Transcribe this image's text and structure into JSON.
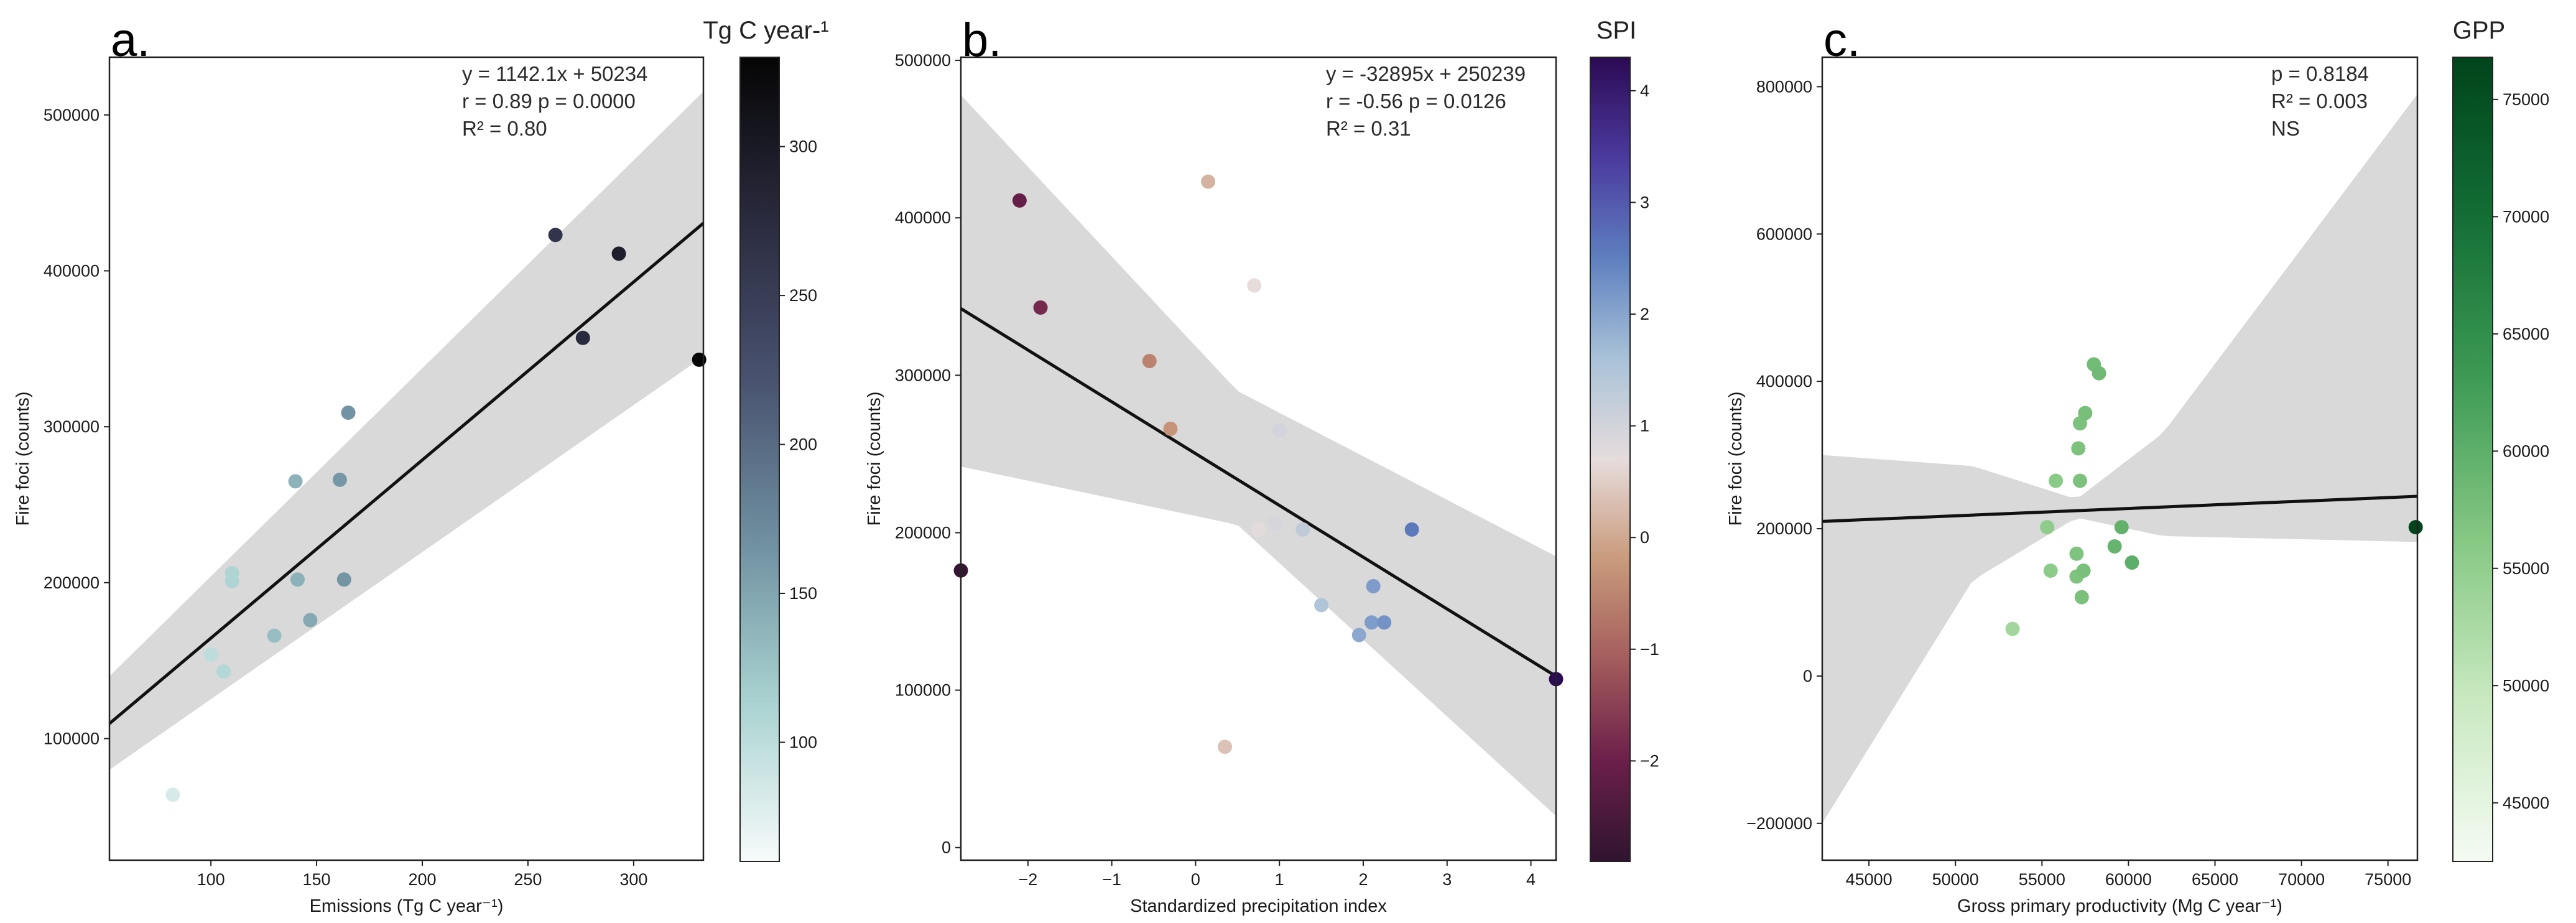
{
  "chart_data": [
    {
      "type": "scatter",
      "panel_label": "a.",
      "title": "",
      "xlabel": "Emissions (Tg C year⁻¹)",
      "ylabel": "Fire foci (counts)",
      "xlim": [
        52,
        333
      ],
      "ylim": [
        22000,
        537000
      ],
      "xticks": [
        100,
        150,
        200,
        250,
        300
      ],
      "xtick_labels": [
        "100",
        "150",
        "200",
        "250",
        "300"
      ],
      "yticks": [
        100000,
        200000,
        300000,
        400000,
        500000
      ],
      "ytick_labels": [
        "100000",
        "200000",
        "300000",
        "400000",
        "500000"
      ],
      "annotations": [
        "y = 1142.1x + 50234",
        "r = 0.89   p = 0.0000",
        "R² = 0.80"
      ],
      "regression": {
        "slope": 1142.1,
        "intercept": 50234
      },
      "ci_band": {
        "x": [
          52,
          333
        ],
        "lower": [
          80000,
          345000
        ],
        "upper": [
          140000,
          515000
        ]
      },
      "colorbar": {
        "title": "Tg C year-¹",
        "range": [
          60,
          330
        ],
        "ticks": [
          100,
          150,
          200,
          250,
          300
        ],
        "tick_labels": [
          "100",
          "150",
          "200",
          "250",
          "300"
        ],
        "colors": [
          "#f7fbfb",
          "#a8d2d0",
          "#6f8fa0",
          "#48526f",
          "#2a2a3e",
          "#050505"
        ]
      },
      "points": [
        {
          "x": 82,
          "y": 64000,
          "c": 82
        },
        {
          "x": 100,
          "y": 154000,
          "c": 100
        },
        {
          "x": 106,
          "y": 143000,
          "c": 106
        },
        {
          "x": 110,
          "y": 201000,
          "c": 110
        },
        {
          "x": 110,
          "y": 206000,
          "c": 110
        },
        {
          "x": 130,
          "y": 166000,
          "c": 130
        },
        {
          "x": 140,
          "y": 265000,
          "c": 140
        },
        {
          "x": 141,
          "y": 202000,
          "c": 141
        },
        {
          "x": 147,
          "y": 176000,
          "c": 147
        },
        {
          "x": 161,
          "y": 266000,
          "c": 161
        },
        {
          "x": 163,
          "y": 202000,
          "c": 163
        },
        {
          "x": 165,
          "y": 309000,
          "c": 165
        },
        {
          "x": 263,
          "y": 423000,
          "c": 263
        },
        {
          "x": 276,
          "y": 357000,
          "c": 276
        },
        {
          "x": 293,
          "y": 411000,
          "c": 293
        },
        {
          "x": 331,
          "y": 343000,
          "c": 331
        }
      ]
    },
    {
      "type": "scatter",
      "panel_label": "b.",
      "title": "",
      "xlabel": "Standardized precipitation index",
      "ylabel": "Fire foci (counts)",
      "xlim": [
        -2.8,
        4.3
      ],
      "ylim": [
        -8000,
        502000
      ],
      "xticks": [
        -2,
        -1,
        0,
        1,
        2,
        3,
        4
      ],
      "xtick_labels": [
        "−2",
        "−1",
        "0",
        "1",
        "2",
        "3",
        "4"
      ],
      "yticks": [
        0,
        100000,
        200000,
        300000,
        400000,
        500000
      ],
      "ytick_labels": [
        "0",
        "100000",
        "200000",
        "300000",
        "400000",
        "500000"
      ],
      "annotations": [
        "y = -32895x + 250239",
        "r = -0.56   p = 0.0126",
        "R² = 0.31"
      ],
      "regression": {
        "slope": -32895,
        "intercept": 250239
      },
      "ci_band": {
        "x": [
          -2.8,
          0.5,
          4.3
        ],
        "lower": [
          242000,
          205000,
          20000
        ],
        "upper": [
          478000,
          290000,
          185000
        ]
      },
      "colorbar": {
        "title": "SPI",
        "range": [
          -2.9,
          4.3
        ],
        "ticks": [
          -2,
          -1,
          0,
          1,
          2,
          3,
          4
        ],
        "tick_labels": [
          "−2",
          "−1",
          "0",
          "1",
          "2",
          "3",
          "4"
        ],
        "colors": [
          "#2f1430",
          "#6b1f4a",
          "#a35c5c",
          "#c99a7b",
          "#e6dcdc",
          "#a9c2d8",
          "#5e7fbf",
          "#4b3a9e",
          "#2c0a54"
        ]
      },
      "points": [
        {
          "x": -2.8,
          "y": 176000,
          "c": -2.8
        },
        {
          "x": -2.1,
          "y": 411000,
          "c": -2.1
        },
        {
          "x": -1.85,
          "y": 343000,
          "c": -1.85
        },
        {
          "x": -0.55,
          "y": 309000,
          "c": -0.55
        },
        {
          "x": -0.3,
          "y": 266000,
          "c": -0.3
        },
        {
          "x": 0.15,
          "y": 423000,
          "c": 0.15
        },
        {
          "x": 0.35,
          "y": 64000,
          "c": 0.35
        },
        {
          "x": 0.7,
          "y": 357000,
          "c": 0.7
        },
        {
          "x": 0.75,
          "y": 202000,
          "c": 0.75
        },
        {
          "x": 0.95,
          "y": 206000,
          "c": 0.95
        },
        {
          "x": 1.0,
          "y": 265000,
          "c": 1.0
        },
        {
          "x": 1.28,
          "y": 202000,
          "c": 1.28
        },
        {
          "x": 1.5,
          "y": 154000,
          "c": 1.5
        },
        {
          "x": 1.95,
          "y": 135000,
          "c": 1.95
        },
        {
          "x": 2.1,
          "y": 143000,
          "c": 2.1
        },
        {
          "x": 2.12,
          "y": 166000,
          "c": 2.12
        },
        {
          "x": 2.25,
          "y": 143000,
          "c": 2.25
        },
        {
          "x": 2.58,
          "y": 202000,
          "c": 2.58
        },
        {
          "x": 4.3,
          "y": 107000,
          "c": 4.3
        }
      ]
    },
    {
      "type": "scatter",
      "panel_label": "c.",
      "title": "",
      "xlabel": "Gross primary productivity (Mg C year⁻¹)",
      "ylabel": "Fire foci (counts)",
      "xlim": [
        42300,
        76700
      ],
      "ylim": [
        -250000,
        840000
      ],
      "xticks": [
        45000,
        50000,
        55000,
        60000,
        65000,
        70000,
        75000
      ],
      "xtick_labels": [
        "45000",
        "50000",
        "55000",
        "60000",
        "65000",
        "70000",
        "75000"
      ],
      "yticks": [
        -200000,
        0,
        200000,
        400000,
        600000,
        800000
      ],
      "ytick_labels": [
        "−200000",
        "0",
        "200000",
        "400000",
        "600000",
        "800000"
      ],
      "annotations": [
        "p = 0.8184",
        "R² = 0.003",
        "NS"
      ],
      "regression": {
        "slope": 0.99,
        "intercept": 168000
      },
      "ci_band": {
        "x": [
          42300,
          51000,
          57000,
          62000,
          76700
        ],
        "lower": [
          -200000,
          130000,
          215000,
          190000,
          182000
        ],
        "upper": [
          300000,
          285000,
          240000,
          330000,
          790000
        ]
      },
      "colorbar": {
        "title": "GPP",
        "range": [
          42500,
          76800
        ],
        "ticks": [
          45000,
          50000,
          55000,
          60000,
          65000,
          70000,
          75000
        ],
        "tick_labels": [
          "45000",
          "50000",
          "55000",
          "60000",
          "65000",
          "70000",
          "75000"
        ],
        "colors": [
          "#f5fbf3",
          "#c9e9c1",
          "#86c883",
          "#3d9b55",
          "#136f35",
          "#00441b"
        ]
      },
      "points": [
        {
          "x": 53300,
          "y": 64000,
          "c": 53300
        },
        {
          "x": 55300,
          "y": 202000,
          "c": 55300
        },
        {
          "x": 55500,
          "y": 143000,
          "c": 55500
        },
        {
          "x": 55800,
          "y": 265000,
          "c": 55800
        },
        {
          "x": 57000,
          "y": 166000,
          "c": 57000
        },
        {
          "x": 57000,
          "y": 135000,
          "c": 57000
        },
        {
          "x": 57100,
          "y": 309000,
          "c": 57100
        },
        {
          "x": 57200,
          "y": 265000,
          "c": 57200
        },
        {
          "x": 57200,
          "y": 343000,
          "c": 57200
        },
        {
          "x": 57300,
          "y": 107000,
          "c": 57300
        },
        {
          "x": 57400,
          "y": 143000,
          "c": 57400
        },
        {
          "x": 57500,
          "y": 357000,
          "c": 57500
        },
        {
          "x": 58000,
          "y": 423000,
          "c": 58000
        },
        {
          "x": 58300,
          "y": 411000,
          "c": 58300
        },
        {
          "x": 59200,
          "y": 176000,
          "c": 59200
        },
        {
          "x": 59600,
          "y": 202000,
          "c": 59600
        },
        {
          "x": 60200,
          "y": 154000,
          "c": 60200
        },
        {
          "x": 76600,
          "y": 202000,
          "c": 76600
        }
      ]
    }
  ]
}
